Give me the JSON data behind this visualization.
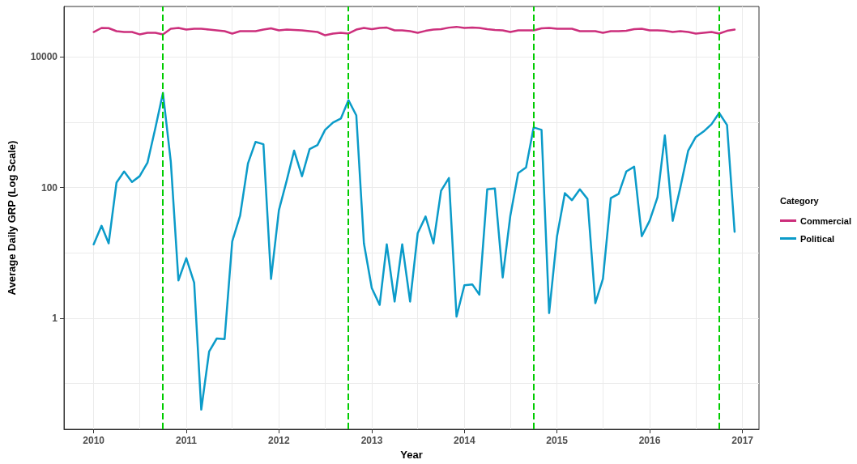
{
  "chart_data": {
    "type": "line",
    "xlabel": "Year",
    "ylabel": "Average Daily GRP (Log Scale)",
    "legend_title": "Category",
    "x": [
      "2010-01",
      "2010-02",
      "2010-03",
      "2010-04",
      "2010-05",
      "2010-06",
      "2010-07",
      "2010-08",
      "2010-09",
      "2010-10",
      "2010-11",
      "2010-12",
      "2011-01",
      "2011-02",
      "2011-03",
      "2011-04",
      "2011-05",
      "2011-06",
      "2011-07",
      "2011-08",
      "2011-09",
      "2011-10",
      "2011-11",
      "2011-12",
      "2012-01",
      "2012-02",
      "2012-03",
      "2012-04",
      "2012-05",
      "2012-06",
      "2012-07",
      "2012-08",
      "2012-09",
      "2012-10",
      "2012-11",
      "2012-12",
      "2013-01",
      "2013-02",
      "2013-03",
      "2013-04",
      "2013-05",
      "2013-06",
      "2013-07",
      "2013-08",
      "2013-09",
      "2013-10",
      "2013-11",
      "2013-12",
      "2014-01",
      "2014-02",
      "2014-03",
      "2014-04",
      "2014-05",
      "2014-06",
      "2014-07",
      "2014-08",
      "2014-09",
      "2014-10",
      "2014-11",
      "2014-12",
      "2015-01",
      "2015-02",
      "2015-03",
      "2015-04",
      "2015-05",
      "2015-06",
      "2015-07",
      "2015-08",
      "2015-09",
      "2015-10",
      "2015-11",
      "2015-12",
      "2016-01",
      "2016-02",
      "2016-03",
      "2016-04",
      "2016-05",
      "2016-06",
      "2016-07",
      "2016-08",
      "2016-09",
      "2016-10",
      "2016-11",
      "2016-12"
    ],
    "series": [
      {
        "name": "Commercial",
        "color": "#cc2f7c",
        "values": [
          24000,
          27700,
          27500,
          24700,
          24000,
          24000,
          22100,
          23300,
          23300,
          22100,
          26900,
          27700,
          26100,
          26900,
          26900,
          26100,
          25400,
          24700,
          22700,
          24700,
          24700,
          24700,
          26100,
          27300,
          25400,
          26100,
          25800,
          25400,
          24700,
          24000,
          21400,
          22700,
          23300,
          22700,
          26100,
          27700,
          26500,
          27700,
          28000,
          25400,
          25400,
          24700,
          23300,
          25000,
          26100,
          26500,
          28000,
          28800,
          27700,
          28000,
          27700,
          26500,
          25800,
          25400,
          24000,
          25400,
          25400,
          25400,
          27300,
          27700,
          26900,
          26900,
          26900,
          24700,
          24700,
          24700,
          23300,
          24700,
          24700,
          25000,
          26500,
          26900,
          25400,
          25400,
          25000,
          24000,
          24700,
          24000,
          22700,
          23300,
          24000,
          22700,
          25000,
          26100
        ]
      },
      {
        "name": "Political",
        "color": "#0b9bc9",
        "values": [
          13.5,
          26,
          14,
          119,
          176,
          122,
          149,
          240,
          810,
          2800,
          247,
          3.8,
          8.3,
          3.5,
          0.04,
          0.31,
          0.49,
          0.48,
          15,
          37,
          233,
          500,
          460,
          4.0,
          45,
          129,
          367,
          149,
          388,
          447,
          764,
          986,
          1136,
          2175,
          1270,
          14,
          2.9,
          1.6,
          13.5,
          1.8,
          13.5,
          1.8,
          20,
          36,
          14,
          89,
          140,
          1.06,
          3.2,
          3.3,
          2.3,
          94,
          97,
          4.2,
          37,
          166,
          203,
          832,
          764,
          1.2,
          18,
          82,
          64,
          94,
          67,
          1.7,
          4.0,
          69,
          80,
          176,
          208,
          18,
          31,
          71,
          628,
          31,
          100,
          367,
          593,
          722,
          931,
          1384,
          906,
          21
        ]
      }
    ],
    "xlim": [
      "2009-09-06",
      "2017-03-07"
    ],
    "xticks": [
      {
        "value": "2010",
        "label": "2010"
      },
      {
        "value": "2010-07",
        "label": null
      },
      {
        "value": "2011",
        "label": "2011"
      },
      {
        "value": "2011-07",
        "label": null
      },
      {
        "value": "2012",
        "label": "2012"
      },
      {
        "value": "2012-07",
        "label": null
      },
      {
        "value": "2013",
        "label": "2013"
      },
      {
        "value": "2013-07",
        "label": null
      },
      {
        "value": "2014",
        "label": "2014"
      },
      {
        "value": "2014-07",
        "label": null
      },
      {
        "value": "2015",
        "label": "2015"
      },
      {
        "value": "2015-07",
        "label": null
      },
      {
        "value": "2016",
        "label": "2016"
      },
      {
        "value": "2016-07",
        "label": null
      },
      {
        "value": "2017",
        "label": "2017"
      }
    ],
    "ylim": [
      0.02,
      59000
    ],
    "yticks": [
      {
        "value": 0.1,
        "label": null
      },
      1,
      {
        "value": 10,
        "label": null
      },
      100,
      {
        "value": 1000,
        "label": null
      },
      10000
    ],
    "log": "y",
    "grid": true,
    "legend": "right",
    "line_style": "solid",
    "marker": "none",
    "ref_lines": [
      {
        "axis": "x",
        "value": "2010-10",
        "color": "#00cc00",
        "line_style": "dashed"
      },
      {
        "axis": "x",
        "value": "2012-10",
        "color": "#00cc00",
        "line_style": "dashed"
      },
      {
        "axis": "x",
        "value": "2014-10",
        "color": "#00cc00",
        "line_style": "dashed"
      },
      {
        "axis": "x",
        "value": "2016-10",
        "color": "#00cc00",
        "line_style": "dashed"
      }
    ]
  }
}
